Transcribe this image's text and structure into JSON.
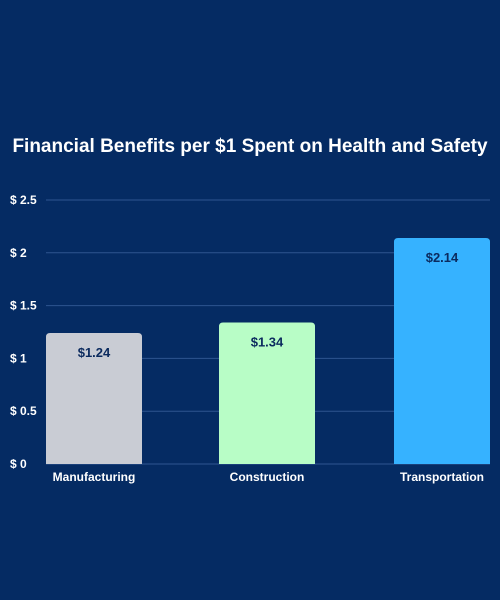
{
  "chart_data": {
    "type": "bar",
    "title": "Financial Benefits per $1 Spent on Health and Safety",
    "categories": [
      "Manufacturing",
      "Construction",
      "Transportation"
    ],
    "values": [
      1.24,
      1.34,
      2.14
    ],
    "data_labels": [
      "$1.24",
      "$1.34",
      "$2.14"
    ],
    "bar_colors": [
      "#c9ccd4",
      "#b8fdc6",
      "#36b2ff"
    ],
    "yticks": [
      0,
      0.5,
      1,
      1.5,
      2,
      2.5
    ],
    "ytick_labels": [
      "$ 0",
      "$ 0.5",
      "$ 1",
      "$ 1.5",
      "$ 2",
      "$ 2.5"
    ],
    "ylim": [
      0,
      2.5
    ],
    "xlabel": "",
    "ylabel": "",
    "grid": true,
    "legend": "none"
  },
  "colors": {
    "background": "#052b63",
    "text": "#ffffff",
    "gridline": "#2e5590",
    "data_label": "#0b2a5e"
  }
}
